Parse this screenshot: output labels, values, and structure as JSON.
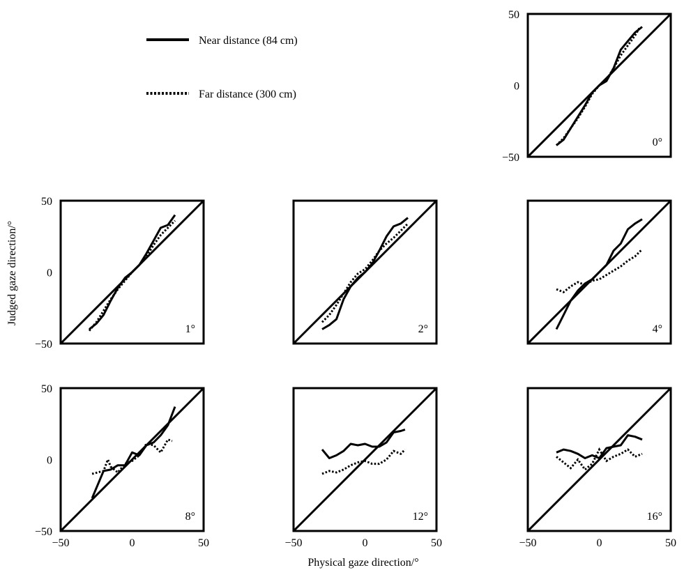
{
  "legend": {
    "near_label": "Near distance (84 cm)",
    "far_label": "Far distance (300 cm)"
  },
  "axes": {
    "ylabel": "Judged gaze direction/°",
    "xlabel": "Physical gaze direction/°"
  },
  "chart_data": {
    "type": "line",
    "xlabel": "Physical gaze direction/°",
    "ylabel": "Judged gaze direction/°",
    "xlim": [
      -50,
      50
    ],
    "ylim": [
      -50,
      50
    ],
    "xticks": [
      "−50",
      "0",
      "50"
    ],
    "yticks": [
      "50",
      "0",
      "−50"
    ],
    "grid": false,
    "legend_position": "top-left",
    "reference_line": "y = x",
    "series_names": [
      "Near distance (84 cm)",
      "Far distance (300 cm)"
    ],
    "panels": [
      {
        "label": "0°",
        "near": {
          "x": [
            -30,
            -25,
            -20,
            -15,
            -10,
            -5,
            0,
            5,
            10,
            15,
            20,
            25,
            30
          ],
          "y": [
            -42,
            -38,
            -30,
            -22,
            -14,
            -5,
            0,
            3,
            12,
            25,
            31,
            37,
            41
          ]
        },
        "far": {
          "x": [
            -30,
            -25,
            -20,
            -15,
            -10,
            -5,
            0,
            5,
            10,
            15,
            20,
            25,
            28
          ],
          "y": [
            -42,
            -37,
            -30,
            -23,
            -15,
            -6,
            0,
            4,
            12,
            21,
            28,
            35,
            40
          ]
        }
      },
      {
        "label": "1°",
        "near": {
          "x": [
            -30,
            -25,
            -20,
            -15,
            -10,
            -5,
            0,
            5,
            10,
            15,
            20,
            25,
            30
          ],
          "y": [
            -40,
            -36,
            -30,
            -20,
            -11,
            -4,
            0,
            5,
            13,
            22,
            31,
            33,
            40
          ]
        },
        "far": {
          "x": [
            -30,
            -25,
            -20,
            -15,
            -10,
            -5,
            0,
            5,
            10,
            15,
            20,
            25,
            30
          ],
          "y": [
            -41,
            -35,
            -27,
            -19,
            -12,
            -6,
            0,
            5,
            11,
            19,
            26,
            31,
            36
          ]
        }
      },
      {
        "label": "2°",
        "near": {
          "x": [
            -30,
            -25,
            -20,
            -15,
            -10,
            -5,
            0,
            5,
            10,
            15,
            20,
            25,
            30
          ],
          "y": [
            -40,
            -37,
            -33,
            -19,
            -10,
            -4,
            0,
            6,
            15,
            25,
            32,
            34,
            38
          ]
        },
        "far": {
          "x": [
            -30,
            -25,
            -20,
            -15,
            -10,
            -5,
            0,
            5,
            10,
            15,
            20,
            25,
            30
          ],
          "y": [
            -35,
            -30,
            -23,
            -15,
            -7,
            -1,
            2,
            8,
            15,
            20,
            24,
            29,
            34
          ]
        }
      },
      {
        "label": "4°",
        "near": {
          "x": [
            -30,
            -25,
            -20,
            -15,
            -10,
            -5,
            0,
            5,
            10,
            15,
            20,
            25,
            30
          ],
          "y": [
            -40,
            -30,
            -20,
            -13,
            -8,
            -5,
            0,
            5,
            15,
            20,
            30,
            34,
            37
          ]
        },
        "far": {
          "x": [
            -30,
            -25,
            -20,
            -15,
            -10,
            -5,
            0,
            5,
            10,
            15,
            20,
            25,
            30
          ],
          "y": [
            -12,
            -14,
            -10,
            -7,
            -9,
            -6,
            -5,
            -2,
            1,
            4,
            8,
            11,
            16
          ]
        }
      },
      {
        "label": "8°",
        "near": {
          "x": [
            -28,
            -20,
            -15,
            -10,
            -5,
            0,
            5,
            10,
            15,
            20,
            25,
            30
          ],
          "y": [
            -27,
            -8,
            -7,
            -4,
            -4,
            5,
            3,
            10,
            12,
            17,
            24,
            37
          ]
        },
        "far": {
          "x": [
            -28,
            -20,
            -17,
            -15,
            -10,
            -5,
            0,
            5,
            10,
            15,
            20,
            25,
            28
          ],
          "y": [
            -10,
            -8,
            0,
            -5,
            -9,
            -3,
            -1,
            3,
            11,
            10,
            5,
            14,
            13
          ]
        }
      },
      {
        "label": "12°",
        "near": {
          "x": [
            -30,
            -25,
            -20,
            -15,
            -10,
            -5,
            0,
            5,
            10,
            15,
            20,
            25,
            28
          ],
          "y": [
            7,
            1,
            3,
            6,
            11,
            10,
            11,
            9,
            9,
            12,
            19,
            20,
            21
          ]
        },
        "far": {
          "x": [
            -30,
            -25,
            -20,
            -15,
            -10,
            -5,
            0,
            5,
            10,
            15,
            20,
            25,
            28
          ],
          "y": [
            -10,
            -8,
            -9,
            -7,
            -4,
            -2,
            -1,
            -3,
            -3,
            0,
            6,
            4,
            7
          ]
        }
      },
      {
        "label": "16°",
        "near": {
          "x": [
            -30,
            -25,
            -20,
            -15,
            -10,
            -5,
            0,
            5,
            10,
            15,
            20,
            25,
            30
          ],
          "y": [
            5,
            7,
            6,
            4,
            1,
            3,
            1,
            8,
            9,
            10,
            17,
            16,
            14
          ]
        },
        "far": {
          "x": [
            -30,
            -25,
            -20,
            -15,
            -10,
            -5,
            0,
            5,
            10,
            15,
            20,
            25,
            30
          ],
          "y": [
            2,
            -2,
            -6,
            0,
            -7,
            -3,
            7,
            -1,
            2,
            4,
            7,
            2,
            4
          ]
        }
      }
    ]
  }
}
